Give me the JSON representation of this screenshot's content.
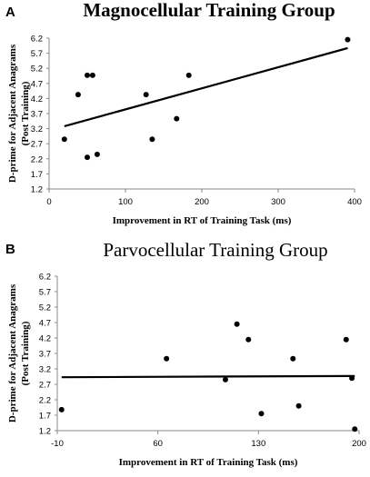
{
  "chart_data": [
    {
      "type": "scatter",
      "panel": "A",
      "title": "Magnocellular Training Group",
      "xlabel": "Improvement in RT of Training Task (ms)",
      "ylabel": [
        "D-prime for Adjacent Anagrams",
        "(Post Training)"
      ],
      "xlim": [
        0,
        400
      ],
      "ylim": [
        1.2,
        6.2
      ],
      "xticks": [
        0,
        100,
        200,
        300,
        400
      ],
      "yticks": [
        1.2,
        1.7,
        2.2,
        2.7,
        3.2,
        3.7,
        4.2,
        4.7,
        5.2,
        5.7,
        6.2
      ],
      "points": [
        {
          "x": 20,
          "y": 2.85
        },
        {
          "x": 38,
          "y": 4.33
        },
        {
          "x": 50,
          "y": 2.25
        },
        {
          "x": 50,
          "y": 4.97
        },
        {
          "x": 57,
          "y": 4.97
        },
        {
          "x": 63,
          "y": 2.35
        },
        {
          "x": 127,
          "y": 4.33
        },
        {
          "x": 135,
          "y": 2.85
        },
        {
          "x": 167,
          "y": 3.53
        },
        {
          "x": 183,
          "y": 4.97
        },
        {
          "x": 391,
          "y": 6.15
        }
      ],
      "trendline": {
        "x": [
          20,
          391
        ],
        "y": [
          3.28,
          5.87
        ]
      },
      "grid": false,
      "legend": "none"
    },
    {
      "type": "scatter",
      "panel": "B",
      "title": "Parvocellular Training Group",
      "xlabel": "Improvement in RT of Training Task (ms)",
      "ylabel": [
        "D-prime for Adjacent Anagrams",
        "(Post Training)"
      ],
      "xlim": [
        -10,
        200
      ],
      "ylim": [
        1.2,
        6.2
      ],
      "xticks": [
        -10,
        60,
        130,
        200
      ],
      "yticks": [
        1.2,
        1.7,
        2.2,
        2.7,
        3.2,
        3.7,
        4.2,
        4.7,
        5.2,
        5.7,
        6.2
      ],
      "points": [
        {
          "x": -7,
          "y": 1.88
        },
        {
          "x": 66,
          "y": 3.53
        },
        {
          "x": 107,
          "y": 2.85
        },
        {
          "x": 115,
          "y": 4.65
        },
        {
          "x": 123,
          "y": 4.15
        },
        {
          "x": 132,
          "y": 1.75
        },
        {
          "x": 154,
          "y": 3.53
        },
        {
          "x": 158,
          "y": 2.0
        },
        {
          "x": 191,
          "y": 4.15
        },
        {
          "x": 195,
          "y": 2.9
        },
        {
          "x": 197,
          "y": 1.25
        }
      ],
      "trendline": {
        "x": [
          -7,
          197
        ],
        "y": [
          2.93,
          2.97
        ]
      },
      "grid": false,
      "legend": "none"
    }
  ]
}
